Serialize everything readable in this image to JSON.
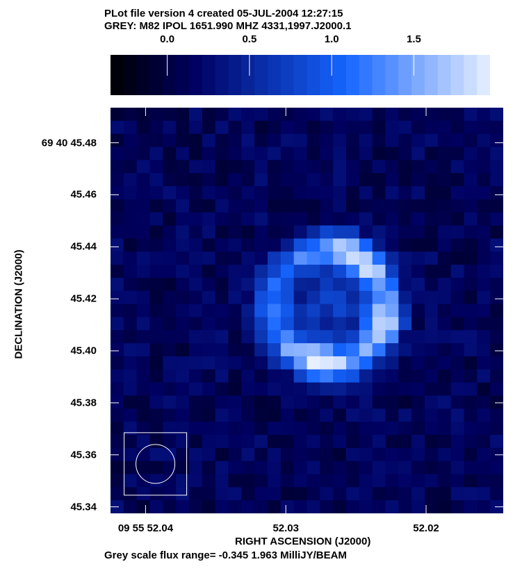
{
  "header": {
    "line1": "PLot file version 4  created 05-JUL-2004 12:27:15",
    "line2": "GREY: M82  IPOL  1651.990 MHZ  4331,1997.J2000.1"
  },
  "footer": "Grey scale flux range= -0.345 1.963 MilliJY/BEAM",
  "colors": {
    "low": "#000000",
    "mid": "#1565ff",
    "high": "#e8f0ff",
    "contour": "#ffffff"
  },
  "chart_data": {
    "type": "heatmap",
    "title": "",
    "xlabel": "RIGHT ASCENSION (J2000)",
    "ylabel": "DECLINATION (J2000)",
    "x_ticks": [
      {
        "label": "09 55 52.04",
        "value": 52.04
      },
      {
        "label": "52.03",
        "value": 52.03
      },
      {
        "label": "52.02",
        "value": 52.02
      }
    ],
    "y_ticks": [
      {
        "label": "69 40 45.48",
        "value": 45.48
      },
      {
        "label": "45.46",
        "value": 45.46
      },
      {
        "label": "45.44",
        "value": 45.44
      },
      {
        "label": "45.42",
        "value": 45.42
      },
      {
        "label": "45.40",
        "value": 45.4
      },
      {
        "label": "45.38",
        "value": 45.38
      },
      {
        "label": "45.36",
        "value": 45.36
      },
      {
        "label": "45.34",
        "value": 45.34
      }
    ],
    "xlim": [
      52.0425,
      52.0145
    ],
    "ylim": [
      45.3375,
      45.4935
    ],
    "colorbar": {
      "range": [
        -0.345,
        1.963
      ],
      "ticks": [
        {
          "label": "0.0",
          "value": 0.0
        },
        {
          "label": "0.5",
          "value": 0.5
        },
        {
          "label": "1.0",
          "value": 1.0
        },
        {
          "label": "1.5",
          "value": 1.5
        }
      ]
    },
    "flux_range": [
      -0.345,
      1.963
    ],
    "flux_unit": "MilliJY/BEAM",
    "source": "M82",
    "stokes": "IPOL",
    "frequency": "1651.990 MHZ",
    "grid": {
      "rows": 31,
      "cols": 30
    },
    "ring_center": [
      52.0269,
      45.4171
    ],
    "beam_center": [
      52.0393,
      45.3565
    ],
    "beam_diameter_deg": 0.0078,
    "grid_on": false
  }
}
